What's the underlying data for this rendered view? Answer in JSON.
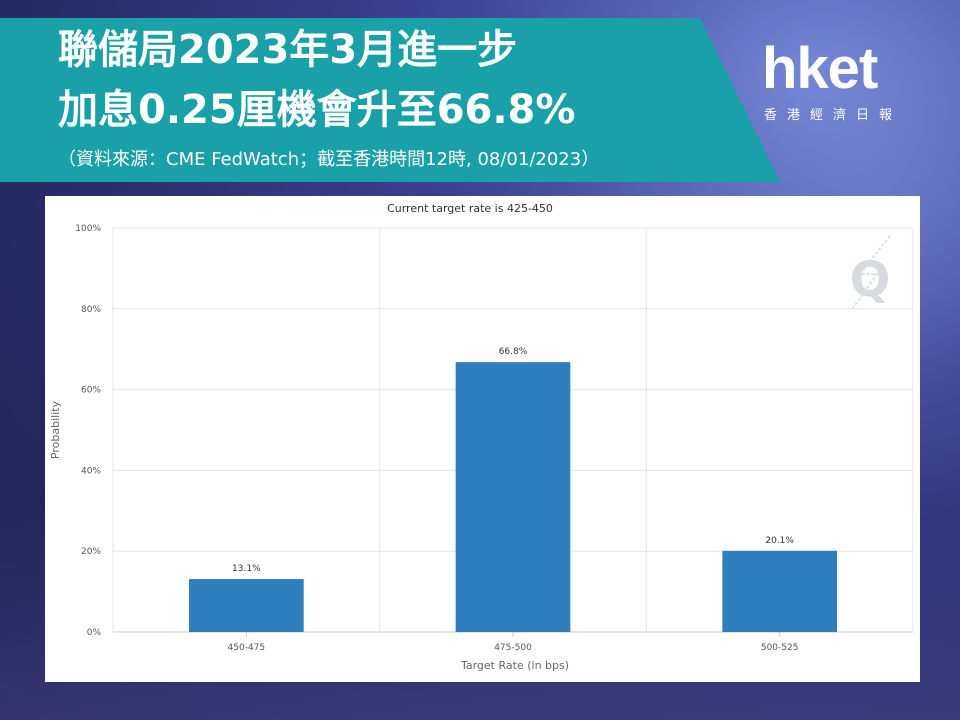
{
  "header": {
    "title_line1": "聯儲局2023年3月進一步",
    "title_line2": "加息0.25厘機會升至66.8%",
    "source_note": "（資料來源：CME FedWatch；截至香港時間12時, 08/01/2023）"
  },
  "logo": {
    "main": "hket",
    "sub": "香港經濟日報"
  },
  "chart_data": {
    "type": "bar",
    "title": "Current target rate is 425-450",
    "xlabel": "Target Rate (in bps)",
    "ylabel": "Probability",
    "categories": [
      "450-475",
      "475-500",
      "500-525"
    ],
    "values": [
      13.1,
      66.8,
      20.1
    ],
    "data_labels": [
      "13.1%",
      "66.8%",
      "20.1%"
    ],
    "ylim": [
      0,
      100
    ],
    "yticks": [
      0,
      20,
      40,
      60,
      80,
      100
    ],
    "ytick_labels": [
      "0%",
      "20%",
      "40%",
      "60%",
      "80%",
      "100%"
    ],
    "grid": true,
    "bar_color": "#2f7fbf",
    "watermark": "Q"
  }
}
